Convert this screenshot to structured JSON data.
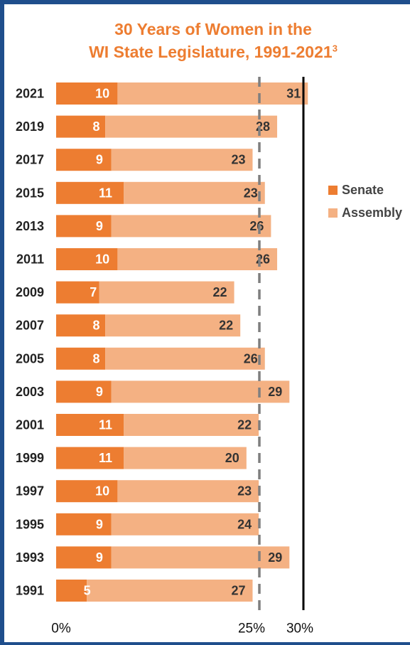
{
  "title": {
    "line1": "30 Years of Women in the",
    "line2": "WI State Legislature, 1991-2021",
    "footnote": "3"
  },
  "colors": {
    "senate": "#ed7d31",
    "assembly": "#f4b183",
    "title": "#ed7d31",
    "frame": "#1f4e8c",
    "reference_25": "#7f7f7f",
    "reference_30": "#000000"
  },
  "chart_data": {
    "type": "bar",
    "orientation": "horizontal",
    "stacked": true,
    "categories": [
      "2021",
      "2019",
      "2017",
      "2015",
      "2013",
      "2011",
      "2009",
      "2007",
      "2005",
      "2003",
      "2001",
      "1999",
      "1997",
      "1995",
      "1993",
      "1991"
    ],
    "series": [
      {
        "name": "Senate",
        "values": [
          10,
          8,
          9,
          11,
          9,
          10,
          7,
          8,
          8,
          9,
          11,
          11,
          10,
          9,
          9,
          5
        ]
      },
      {
        "name": "Assembly",
        "values": [
          31,
          28,
          23,
          23,
          26,
          26,
          22,
          22,
          26,
          29,
          22,
          20,
          23,
          24,
          29,
          27
        ]
      }
    ],
    "x_ticks": [
      "0%",
      "25%",
      "30%"
    ],
    "reference_lines": [
      {
        "label": "25%",
        "style": "dashed"
      },
      {
        "label": "30%",
        "style": "solid"
      }
    ],
    "legend_position": "right"
  }
}
